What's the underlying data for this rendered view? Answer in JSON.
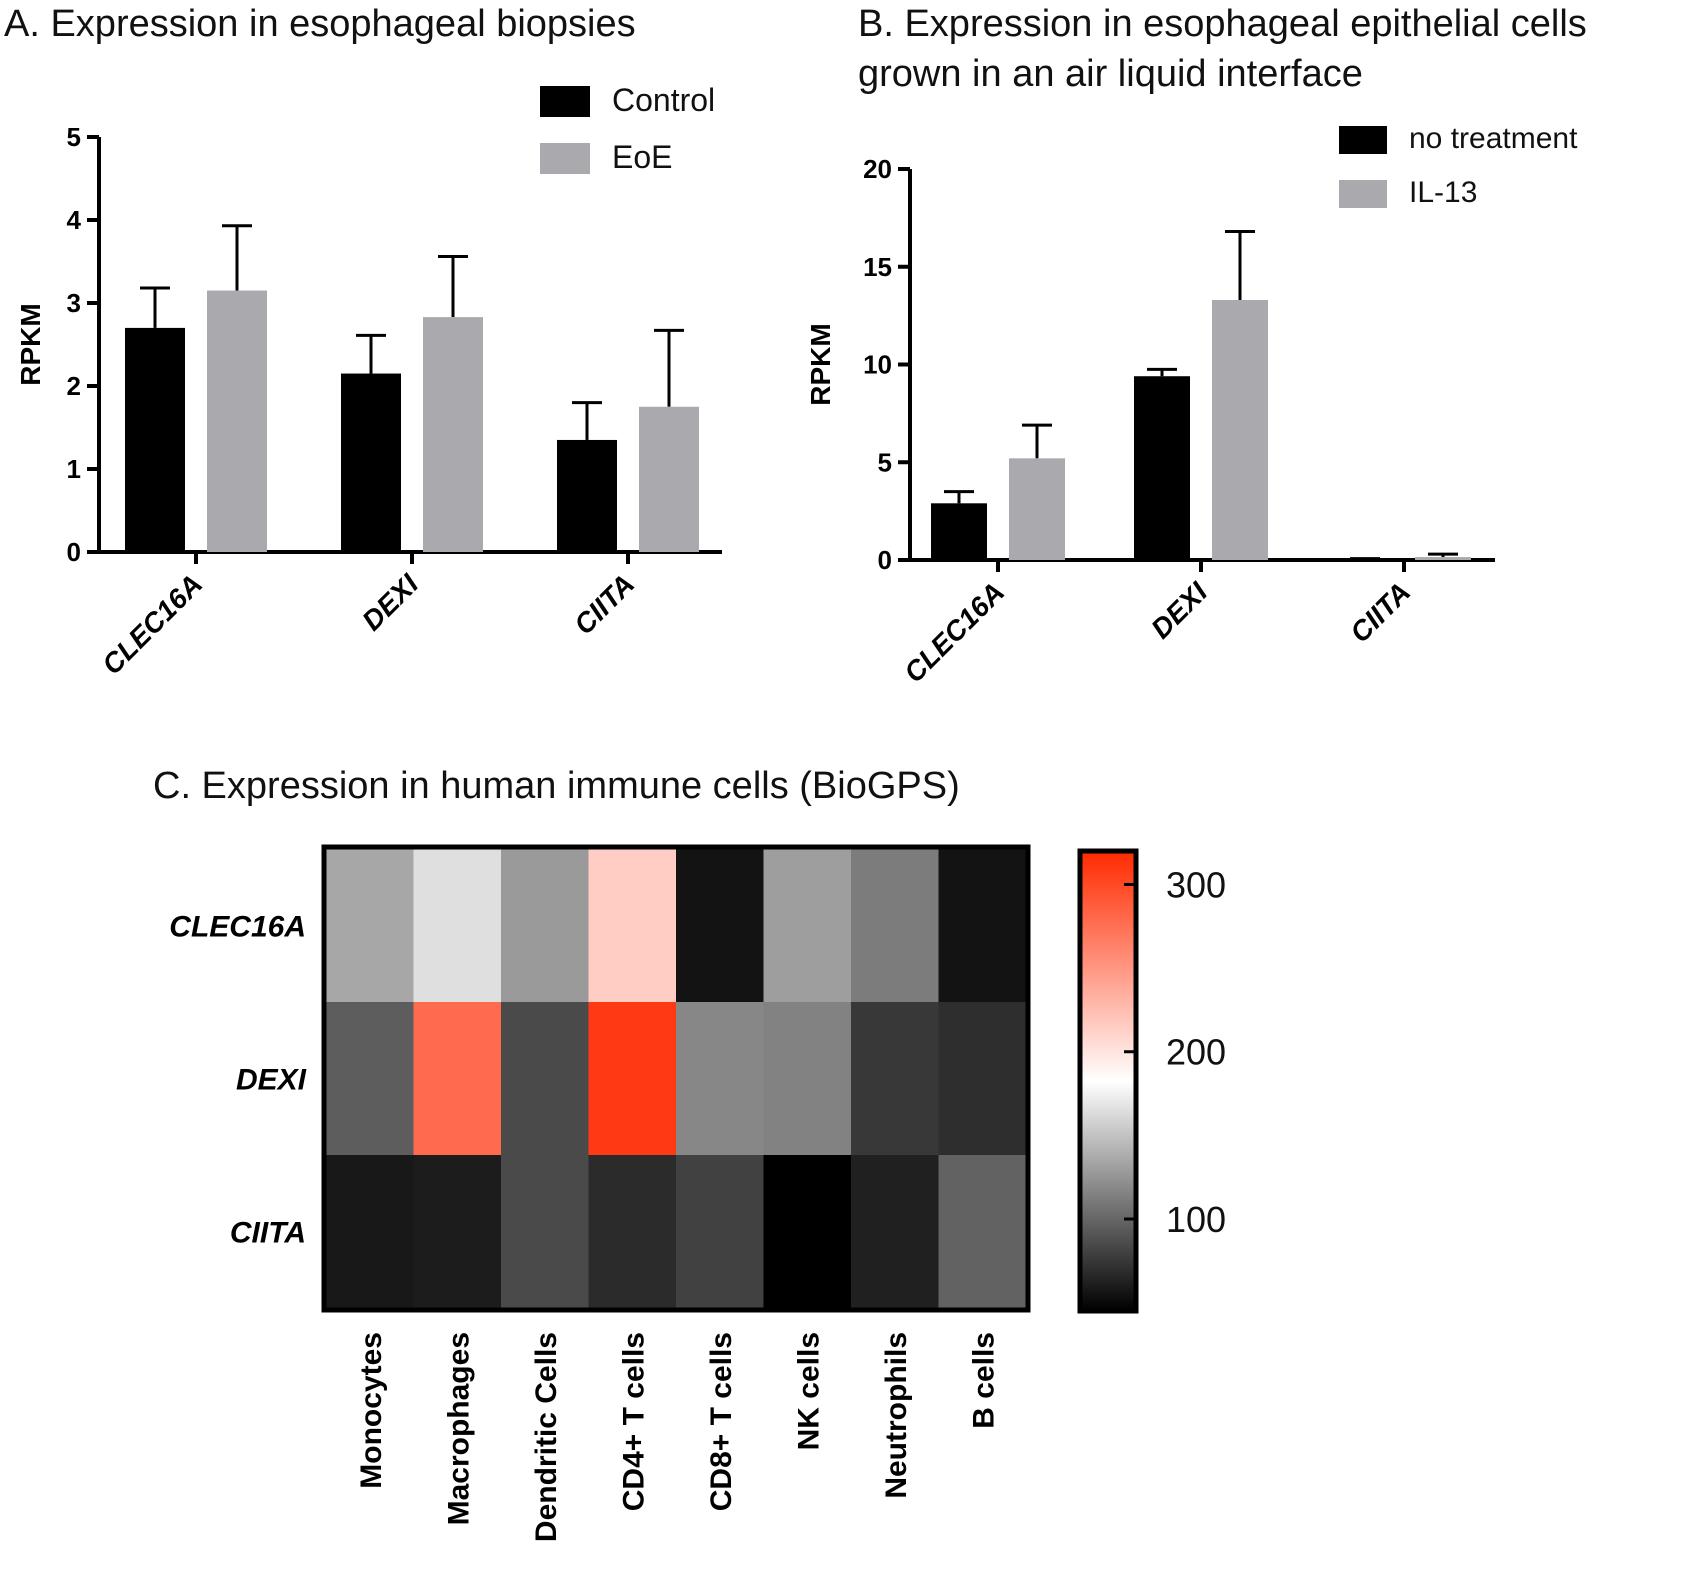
{
  "chart_data": [
    {
      "type": "bar",
      "title": "A. Expression in esophageal biopsies",
      "ylabel": "RPKM",
      "ylim": [
        0,
        5
      ],
      "yticks": [
        "0",
        "1",
        "2",
        "3",
        "4",
        "5"
      ],
      "categories": [
        "CLEC16A",
        "DEXI",
        "CIITA"
      ],
      "series": [
        {
          "name": "Control",
          "values": [
            2.7,
            2.15,
            1.35
          ],
          "errors": [
            0.48,
            0.46,
            0.45
          ],
          "color": "#000000"
        },
        {
          "name": "EoE",
          "values": [
            3.15,
            2.83,
            1.75
          ],
          "errors": [
            0.78,
            0.73,
            0.92
          ],
          "color": "#aaaaae"
        }
      ],
      "legend": "top-right",
      "grid": false
    },
    {
      "type": "bar",
      "title": "B. Expression in esophageal epithelial cells grown in an air liquid interface",
      "ylabel": "RPKM",
      "ylim": [
        0,
        20
      ],
      "yticks": [
        "0",
        "5",
        "10",
        "15",
        "20"
      ],
      "categories": [
        "CLEC16A",
        "DEXI",
        "CIITA"
      ],
      "series": [
        {
          "name": "no treatment",
          "values": [
            2.9,
            9.4,
            0.05
          ],
          "errors": [
            0.6,
            0.35,
            0.02
          ],
          "color": "#000000"
        },
        {
          "name": "IL-13",
          "values": [
            5.2,
            13.3,
            0.15
          ],
          "errors": [
            1.7,
            3.5,
            0.15
          ],
          "color": "#aaaaae"
        }
      ],
      "legend": "top-right",
      "grid": false
    },
    {
      "type": "heatmap",
      "title": "C. Expression in human immune cells (BioGPS)",
      "rows": [
        "CLEC16A",
        "DEXI",
        "CIITA"
      ],
      "columns": [
        "Monocytes",
        "Macrophages",
        "Dendritic Cells",
        "CD4+ T cells",
        "CD8+ T cells",
        "NK cells",
        "Neutrophils",
        "B cells"
      ],
      "values": [
        [
          135,
          165,
          128,
          215,
          55,
          130,
          112,
          55
        ],
        [
          95,
          278,
          85,
          310,
          118,
          115,
          75,
          70
        ],
        [
          58,
          60,
          85,
          68,
          80,
          45,
          62,
          98
        ]
      ],
      "colorbar": {
        "range": [
          45,
          320
        ],
        "ticks": [
          100,
          200,
          300
        ],
        "tick_labels": [
          "100",
          "200",
          "300"
        ],
        "colors": [
          "#000000",
          "#ffffff",
          "#ff2a00"
        ]
      }
    }
  ]
}
